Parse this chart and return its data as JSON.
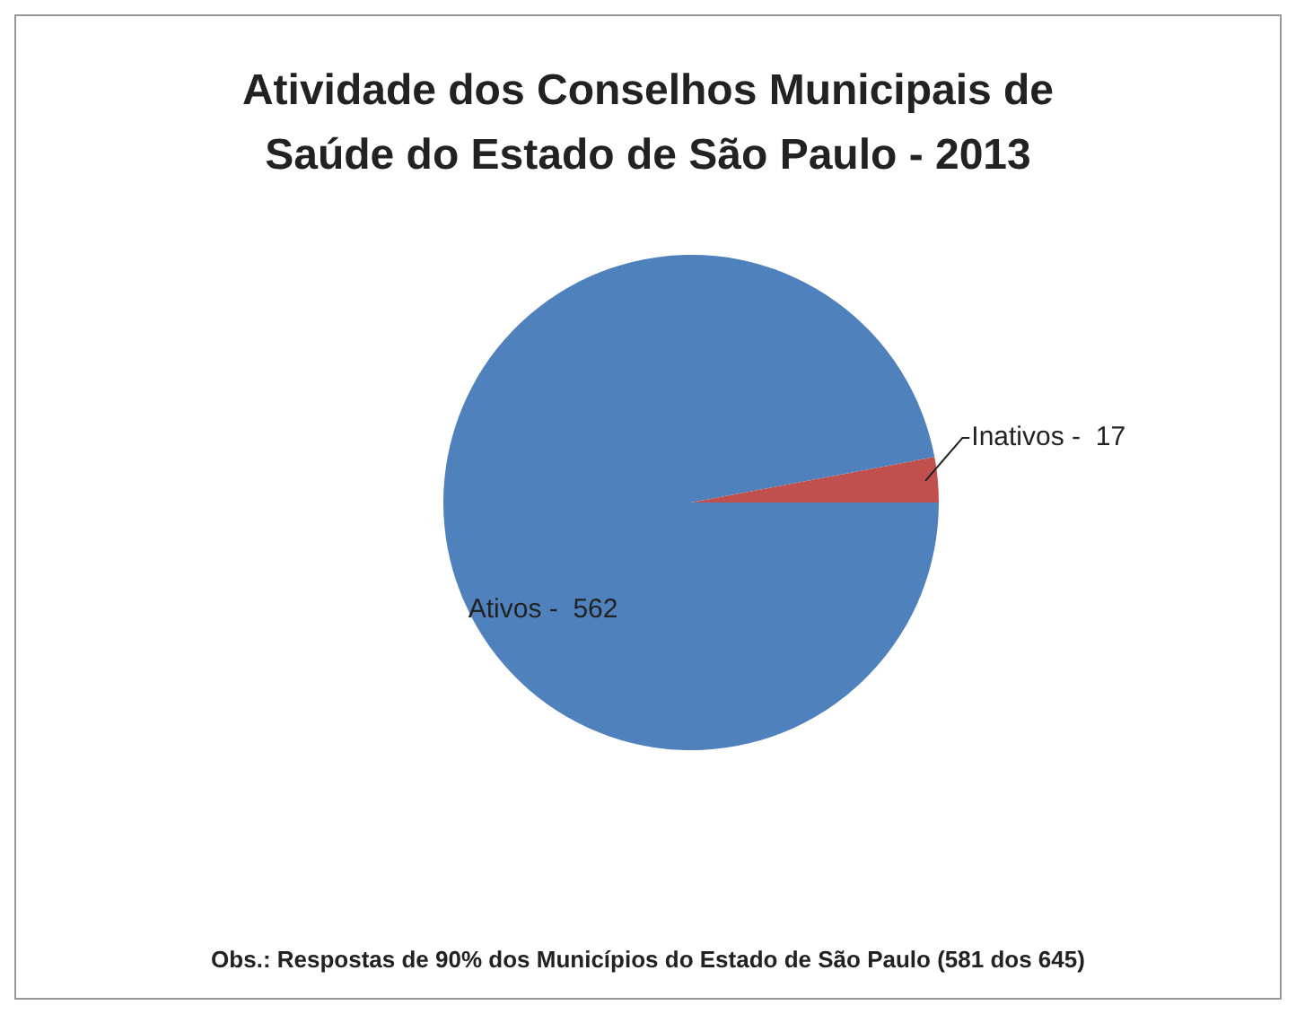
{
  "chart_data": {
    "type": "pie",
    "title": "Atividade dos Conselhos Municipais de Saúde do Estado de São Paulo - 2013",
    "categories": [
      "Ativos -",
      "Inativos -"
    ],
    "values": [
      562,
      17
    ],
    "colors": [
      "#4f81bd",
      "#c0504d"
    ],
    "data_labels": true,
    "legend": false,
    "annotations": [
      "Obs.: Respostas de 90%  dos Municípios do Estado de São Paulo (581 dos 645)"
    ]
  }
}
